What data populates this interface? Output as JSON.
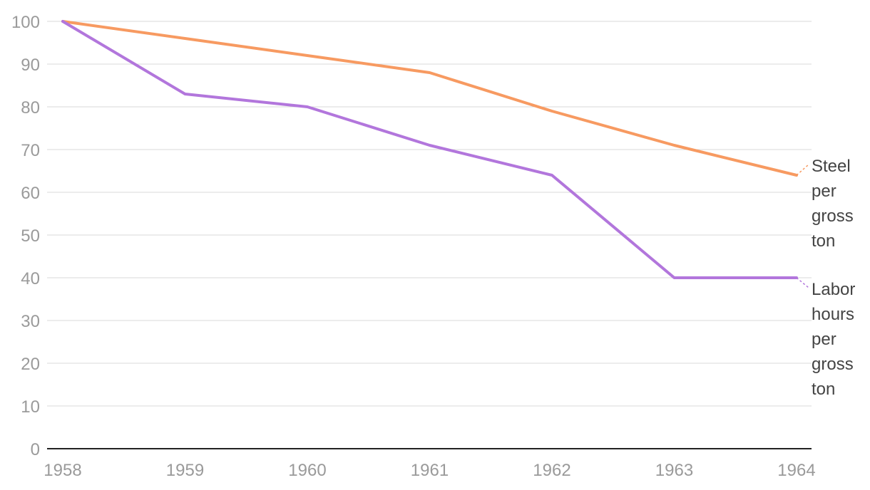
{
  "chart_data": {
    "type": "line",
    "title": "",
    "xlabel": "",
    "ylabel": "",
    "x": [
      "1958",
      "1959",
      "1960",
      "1961",
      "1962",
      "1963",
      "1964"
    ],
    "y_ticks": [
      "0",
      "10",
      "20",
      "30",
      "40",
      "50",
      "60",
      "70",
      "80",
      "90",
      "100"
    ],
    "ylim": [
      0,
      100
    ],
    "grid": true,
    "legend": "inline-right",
    "series": [
      {
        "name": "Steel per gross ton",
        "label_lines": [
          "Steel",
          "per",
          "gross",
          "ton"
        ],
        "color": "#f79a61",
        "values": [
          100,
          96,
          92,
          88,
          79,
          71,
          64
        ]
      },
      {
        "name": "Labor hours per gross ton",
        "label_lines": [
          "Labor",
          "hours",
          "per",
          "gross",
          "ton"
        ],
        "color": "#b276dc",
        "values": [
          100,
          83,
          80,
          71,
          64,
          40,
          40
        ]
      }
    ]
  }
}
